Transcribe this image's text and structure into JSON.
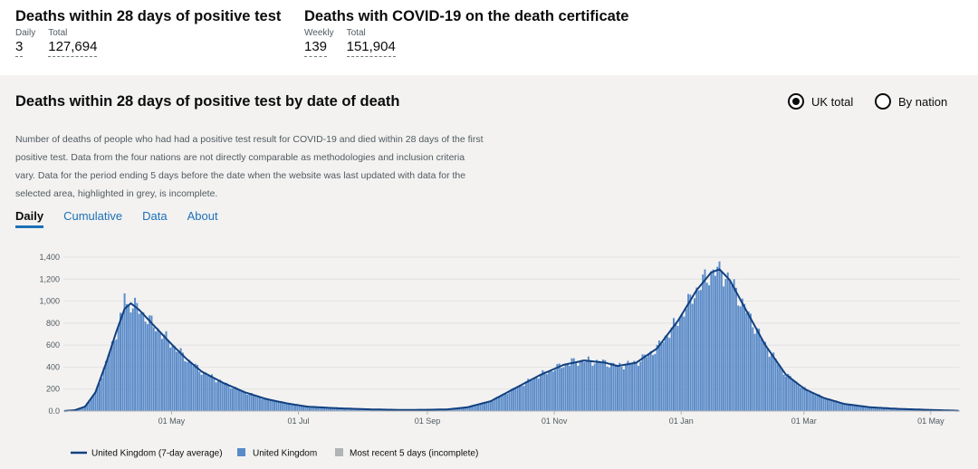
{
  "headlines": [
    {
      "title": "Deaths within 28 days of positive test",
      "metrics": [
        {
          "label": "Daily",
          "value": "3"
        },
        {
          "label": "Total",
          "value": "127,694"
        }
      ]
    },
    {
      "title": "Deaths with COVID-19 on the death certificate",
      "metrics": [
        {
          "label": "Weekly",
          "value": "139"
        },
        {
          "label": "Total",
          "value": "151,904"
        }
      ]
    }
  ],
  "card": {
    "title": "Deaths within 28 days of positive test by date of death",
    "radio_options": [
      "UK total",
      "By nation"
    ],
    "radio_selected": "UK total",
    "description": "Number of deaths of people who had had a positive test result for COVID-19 and died within 28 days of the first positive test. Data from the four nations are not directly comparable as methodologies and inclusion criteria vary. Data for the period ending 5 days before the date when the website was last updated with data for the selected area, highlighted in grey, is incomplete.",
    "tabs": [
      "Daily",
      "Cumulative",
      "Data",
      "About"
    ],
    "active_tab": "Daily"
  },
  "colors": {
    "bar": "#5a8bc9",
    "line": "#12407f",
    "incomplete": "#b1b4b6",
    "card_bg": "#f3f2f1",
    "link": "#1d70b8"
  },
  "chart_data": {
    "type": "bar",
    "title": "",
    "xlabel": "",
    "ylabel": "",
    "ylim": [
      0,
      1400
    ],
    "yticks": [
      0,
      200,
      400,
      600,
      800,
      1000,
      1200,
      1400
    ],
    "ytick_labels": [
      "0.0",
      "200",
      "400",
      "600",
      "800",
      "1,000",
      "1,200",
      "1,400"
    ],
    "x_start": "2020-03-10",
    "x_end": "2021-05-14",
    "xticks": [
      {
        "date": "2020-05-01",
        "label": "01 May"
      },
      {
        "date": "2020-07-01",
        "label": "01 Jul"
      },
      {
        "date": "2020-09-01",
        "label": "01 Sep"
      },
      {
        "date": "2020-11-01",
        "label": "01 Nov"
      },
      {
        "date": "2021-01-01",
        "label": "01 Jan"
      },
      {
        "date": "2021-03-01",
        "label": "01 Mar"
      },
      {
        "date": "2021-05-01",
        "label": "01 May"
      }
    ],
    "anchors": [
      [
        "2020-03-10",
        1
      ],
      [
        "2020-03-15",
        8
      ],
      [
        "2020-03-20",
        40
      ],
      [
        "2020-03-25",
        170
      ],
      [
        "2020-03-30",
        430
      ],
      [
        "2020-04-04",
        720
      ],
      [
        "2020-04-08",
        930
      ],
      [
        "2020-04-11",
        980
      ],
      [
        "2020-04-15",
        920
      ],
      [
        "2020-04-20",
        820
      ],
      [
        "2020-04-25",
        720
      ],
      [
        "2020-05-01",
        600
      ],
      [
        "2020-05-08",
        470
      ],
      [
        "2020-05-15",
        360
      ],
      [
        "2020-05-25",
        260
      ],
      [
        "2020-06-05",
        170
      ],
      [
        "2020-06-15",
        110
      ],
      [
        "2020-06-25",
        70
      ],
      [
        "2020-07-05",
        40
      ],
      [
        "2020-07-20",
        25
      ],
      [
        "2020-08-05",
        15
      ],
      [
        "2020-08-20",
        10
      ],
      [
        "2020-09-01",
        12
      ],
      [
        "2020-09-10",
        15
      ],
      [
        "2020-09-20",
        35
      ],
      [
        "2020-10-01",
        90
      ],
      [
        "2020-10-15",
        230
      ],
      [
        "2020-10-25",
        330
      ],
      [
        "2020-11-05",
        420
      ],
      [
        "2020-11-15",
        460
      ],
      [
        "2020-11-25",
        440
      ],
      [
        "2020-12-01",
        410
      ],
      [
        "2020-12-10",
        440
      ],
      [
        "2020-12-20",
        570
      ],
      [
        "2020-12-30",
        820
      ],
      [
        "2021-01-08",
        1100
      ],
      [
        "2021-01-15",
        1260
      ],
      [
        "2021-01-19",
        1290
      ],
      [
        "2021-01-24",
        1190
      ],
      [
        "2021-02-01",
        910
      ],
      [
        "2021-02-10",
        600
      ],
      [
        "2021-02-20",
        330
      ],
      [
        "2021-03-01",
        200
      ],
      [
        "2021-03-10",
        120
      ],
      [
        "2021-03-20",
        65
      ],
      [
        "2021-04-01",
        35
      ],
      [
        "2021-04-15",
        20
      ],
      [
        "2021-05-01",
        10
      ],
      [
        "2021-05-14",
        3
      ]
    ],
    "spikes": [
      {
        "date": "2020-04-08",
        "value": 1070
      },
      {
        "date": "2020-11-09",
        "value": 480
      },
      {
        "date": "2021-01-19",
        "value": 1361
      }
    ],
    "incomplete_days": 5,
    "series": [
      {
        "name": "United Kingdom (7-day average)",
        "kind": "line"
      },
      {
        "name": "United Kingdom",
        "kind": "bar"
      },
      {
        "name": "Most recent 5 days (incomplete)",
        "kind": "bar"
      }
    ]
  }
}
